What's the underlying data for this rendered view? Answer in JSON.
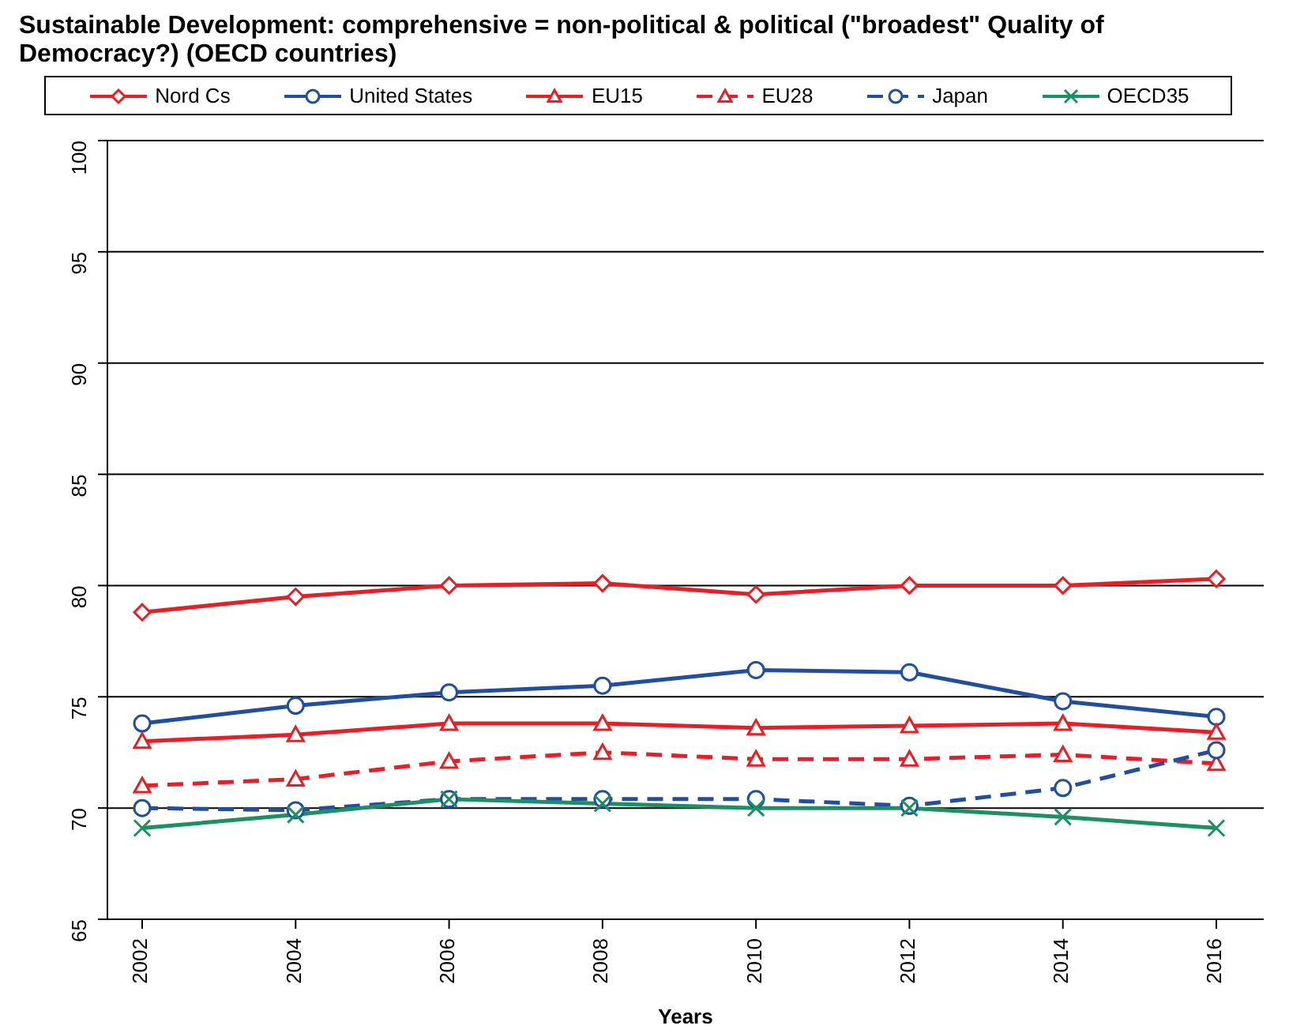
{
  "chart_data": {
    "type": "line",
    "title": "Sustainable Development: comprehensive = non-political & political (\"broadest\" Quality of Democracy?) (OECD countries)",
    "xlabel": "Years",
    "categories": [
      "2002",
      "2004",
      "2006",
      "2008",
      "2010",
      "2012",
      "2014",
      "2016"
    ],
    "series": [
      {
        "name": "Nord Cs",
        "color": "#ed1c24",
        "marker": "diamond",
        "line_style": "solid",
        "values": [
          78.8,
          79.5,
          80.0,
          80.1,
          79.6,
          80.0,
          80.0,
          80.3
        ]
      },
      {
        "name": "United States",
        "color": "#1f4ea3",
        "marker": "circle",
        "line_style": "solid",
        "values": [
          73.8,
          74.6,
          75.2,
          75.5,
          76.2,
          76.1,
          74.8,
          74.1
        ]
      },
      {
        "name": "EU15",
        "color": "#ed1c24",
        "marker": "triangle",
        "line_style": "solid",
        "values": [
          73.0,
          73.3,
          73.8,
          73.8,
          73.6,
          73.7,
          73.8,
          73.4
        ]
      },
      {
        "name": "EU28",
        "color": "#ed1c24",
        "marker": "triangle",
        "line_style": "dashed",
        "values": [
          71.0,
          71.3,
          72.1,
          72.5,
          72.2,
          72.2,
          72.4,
          72.0
        ]
      },
      {
        "name": "Japan",
        "color": "#1f4ea3",
        "marker": "circle",
        "line_style": "dashed",
        "values": [
          70.0,
          69.9,
          70.4,
          70.4,
          70.4,
          70.1,
          70.9,
          72.6
        ]
      },
      {
        "name": "OECD35",
        "color": "#1a9160",
        "marker": "cross",
        "line_style": "solid",
        "values": [
          69.1,
          69.7,
          70.4,
          70.2,
          70.0,
          70.0,
          69.6,
          69.1
        ]
      }
    ],
    "ylim": [
      65,
      100
    ],
    "yticks": [
      65,
      70,
      75,
      80,
      85,
      90,
      95,
      100
    ],
    "grid": "y",
    "legend": "top"
  }
}
